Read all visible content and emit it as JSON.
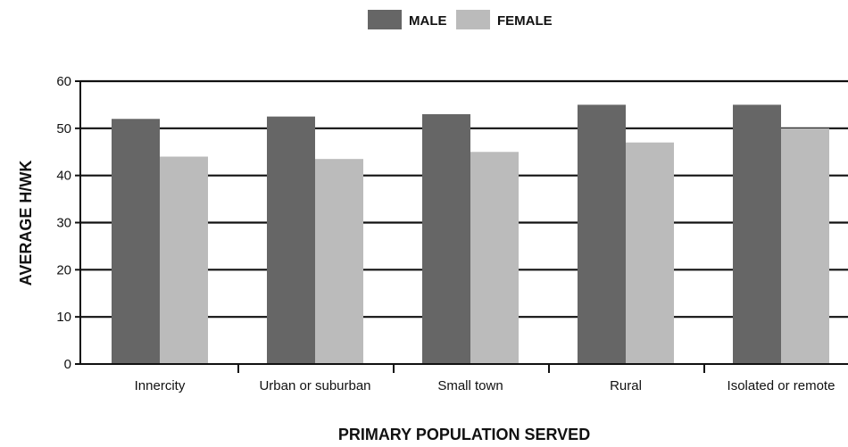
{
  "chart_data": {
    "type": "bar",
    "categories": [
      "Innercity",
      "Urban or suburban",
      "Small town",
      "Rural",
      "Isolated or remote"
    ],
    "series": [
      {
        "name": "MALE",
        "values": [
          52,
          52.5,
          53,
          55,
          55
        ],
        "color": "#666666"
      },
      {
        "name": "FEMALE",
        "values": [
          44,
          43.5,
          45,
          47,
          50
        ],
        "color": "#bbbbbb"
      }
    ],
    "xlabel": "PRIMARY POPULATION SERVED",
    "ylabel": "AVERAGE H/WK",
    "ylim": [
      0,
      60
    ],
    "yticks": [
      "0",
      "10",
      "20",
      "30",
      "40",
      "50",
      "60"
    ],
    "grid": true,
    "legend": "top-center"
  }
}
